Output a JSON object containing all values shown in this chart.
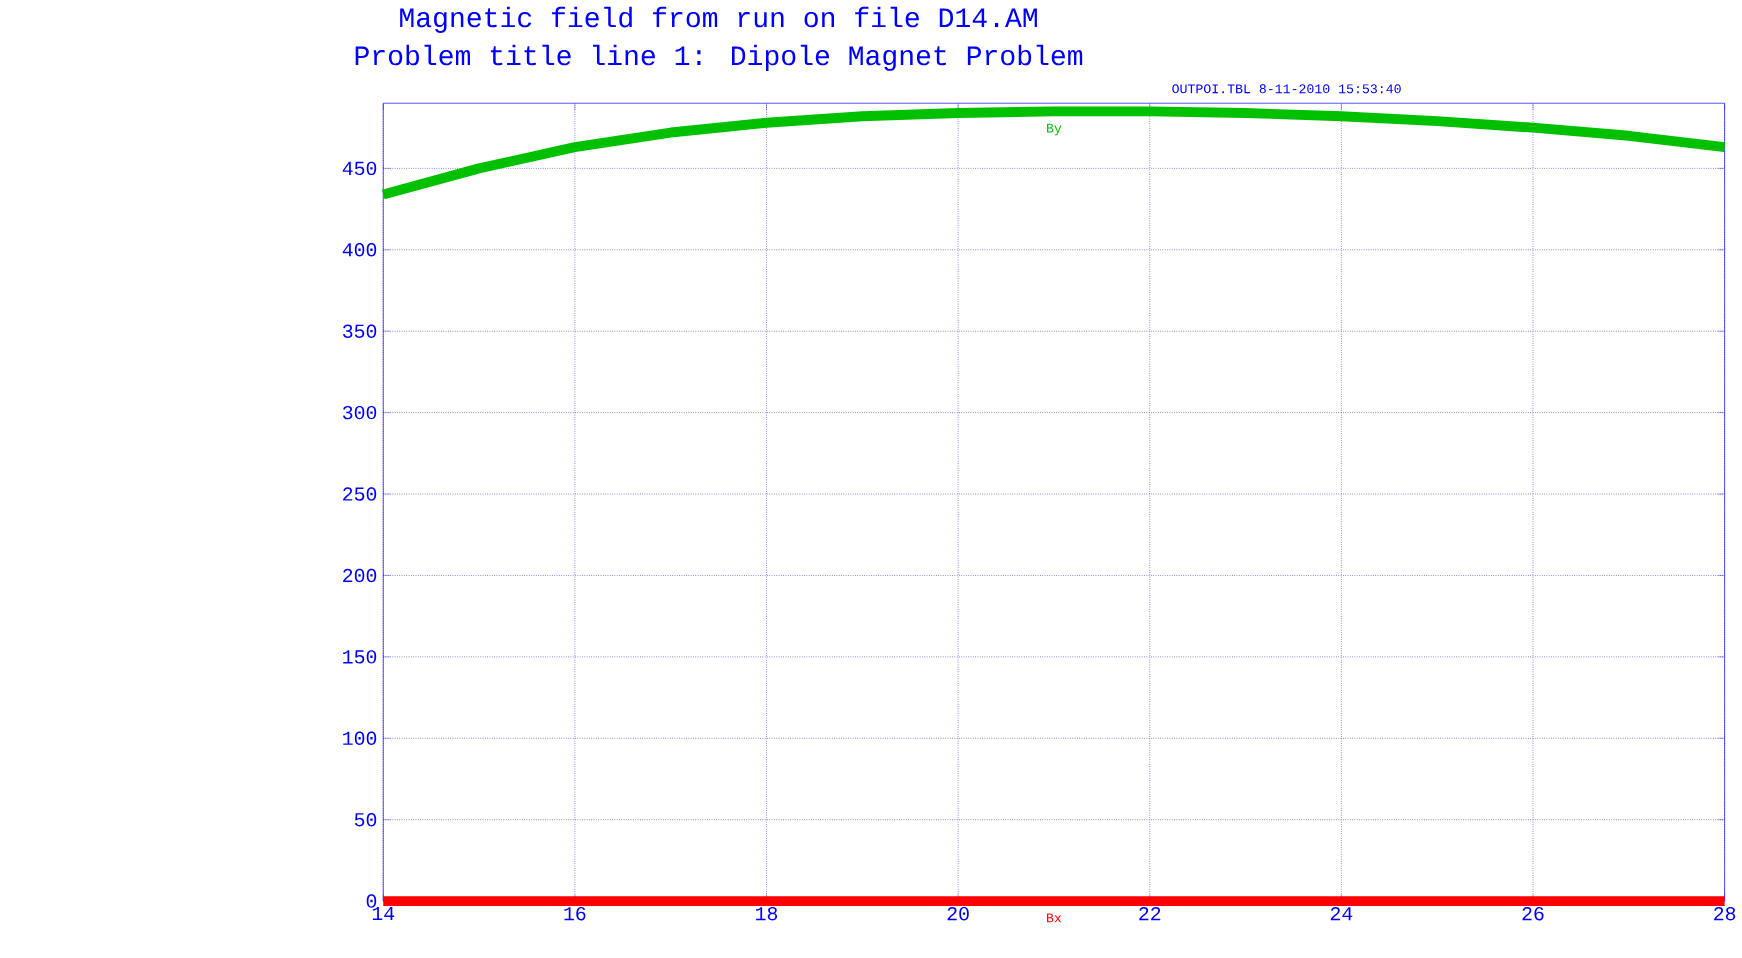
{
  "chart_data": {
    "type": "line",
    "title": "Magnetic field from run on file D14.AM",
    "subtitle": "Problem title line 1: Dipole Magnet Problem",
    "annotations": [
      "OUTPOI.TBL   8-11-2010  15:53:40"
    ],
    "x": [
      14,
      15,
      16,
      17,
      18,
      19,
      20,
      21,
      22,
      23,
      24,
      25,
      26,
      27,
      28
    ],
    "series": [
      {
        "name": "By",
        "color": "#00c000",
        "values": [
          434,
          450,
          463,
          472,
          478,
          482,
          484,
          485,
          485,
          484,
          482,
          479,
          475,
          470,
          463
        ]
      },
      {
        "name": "Bx",
        "color": "#ff0000",
        "values": [
          0,
          0,
          0,
          0,
          0,
          0,
          0,
          0,
          0,
          0,
          0,
          0,
          0,
          0,
          0
        ]
      }
    ],
    "xlim": [
      14,
      28
    ],
    "ylim": [
      0,
      490
    ],
    "xticks": [
      14,
      16,
      18,
      20,
      22,
      24,
      26,
      28
    ],
    "yticks": [
      0,
      50,
      100,
      150,
      200,
      250,
      300,
      350,
      400,
      450
    ],
    "grid": true,
    "marker": "none",
    "line_style": "solid"
  }
}
